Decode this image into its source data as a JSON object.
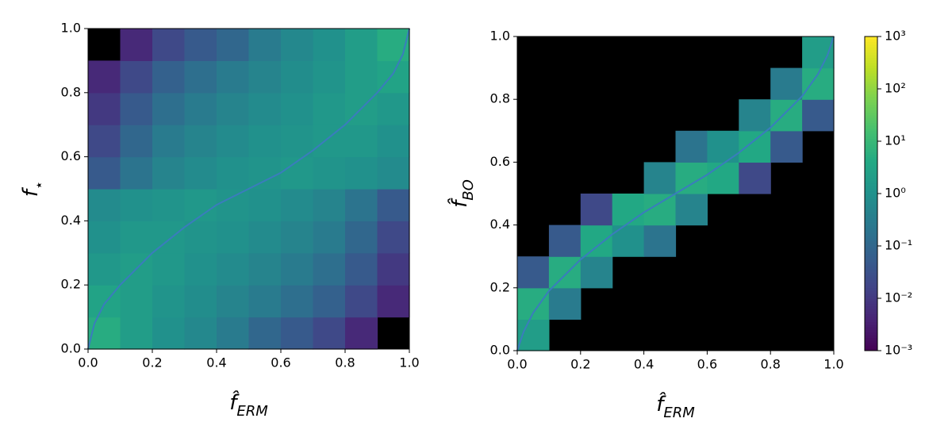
{
  "chart_data": [
    {
      "type": "heatmap",
      "xlabel": {
        "text": "f̂",
        "sub": "ERM"
      },
      "ylabel": {
        "text": "f",
        "sub": "⋆"
      },
      "xlim": [
        0,
        1
      ],
      "ylim": [
        0,
        1
      ],
      "xticks": [
        {
          "value": 0,
          "label": "0.0"
        },
        0.2,
        0.4,
        0.6,
        0.8,
        {
          "value": 1,
          "label": "1.0"
        }
      ],
      "yticks": [
        {
          "value": 0,
          "label": "0.0"
        },
        0.2,
        0.4,
        0.6,
        0.8,
        {
          "value": 1,
          "label": "1.0"
        }
      ],
      "colormap": "viridis",
      "scale": "log",
      "facecolor": "#000000",
      "z": [
        [
          5,
          2,
          1,
          0.6,
          0.3,
          0.1,
          0.05,
          0.02,
          0.005,
          null
        ],
        [
          3,
          2,
          1.2,
          0.8,
          0.5,
          0.3,
          0.15,
          0.07,
          0.02,
          0.005
        ],
        [
          1.5,
          2,
          1.5,
          1,
          0.7,
          0.5,
          0.3,
          0.15,
          0.05,
          0.01
        ],
        [
          1,
          1.5,
          1.5,
          1.2,
          1,
          0.7,
          0.5,
          0.3,
          0.1,
          0.02
        ],
        [
          0.7,
          1,
          1.2,
          1.5,
          1.2,
          1,
          0.7,
          0.5,
          0.2,
          0.05
        ],
        [
          0.05,
          0.2,
          0.5,
          0.7,
          1,
          1.2,
          1.5,
          1.2,
          1,
          0.7
        ],
        [
          0.02,
          0.1,
          0.3,
          0.5,
          0.7,
          1,
          1.2,
          1.5,
          1.5,
          1
        ],
        [
          0.01,
          0.05,
          0.15,
          0.3,
          0.5,
          0.7,
          1,
          1.5,
          2,
          1.5
        ],
        [
          0.005,
          0.02,
          0.07,
          0.15,
          0.3,
          0.5,
          0.8,
          1.2,
          2,
          3
        ],
        [
          null,
          0.005,
          0.02,
          0.05,
          0.1,
          0.3,
          0.6,
          1,
          2,
          5
        ]
      ],
      "line": {
        "color": "#3a7cbd",
        "x": [
          0,
          0.02,
          0.05,
          0.1,
          0.2,
          0.3,
          0.4,
          0.5,
          0.6,
          0.7,
          0.8,
          0.9,
          0.95,
          0.98,
          1
        ],
        "y": [
          0,
          0.08,
          0.14,
          0.2,
          0.3,
          0.38,
          0.45,
          0.5,
          0.55,
          0.62,
          0.7,
          0.8,
          0.86,
          0.92,
          1
        ]
      }
    },
    {
      "type": "heatmap",
      "xlabel": {
        "text": "f̂",
        "sub": "ERM"
      },
      "ylabel": {
        "text": "f̂",
        "sub": "BO"
      },
      "xlim": [
        0,
        1
      ],
      "ylim": [
        0,
        1
      ],
      "xticks": [
        {
          "value": 0,
          "label": "0.0"
        },
        0.2,
        0.4,
        0.6,
        0.8,
        {
          "value": 1,
          "label": "1.0"
        }
      ],
      "yticks": [
        {
          "value": 0,
          "label": "0.0"
        },
        0.2,
        0.4,
        0.6,
        0.8,
        {
          "value": 1,
          "label": "1.0"
        }
      ],
      "colormap": "viridis",
      "scale": "log",
      "facecolor": "#000000",
      "z": [
        [
          2,
          null,
          null,
          null,
          null,
          null,
          null,
          null,
          null,
          null
        ],
        [
          5,
          0.3,
          null,
          null,
          null,
          null,
          null,
          null,
          null,
          null
        ],
        [
          0.05,
          5,
          0.5,
          null,
          null,
          null,
          null,
          null,
          null,
          null
        ],
        [
          null,
          0.05,
          4,
          1,
          0.2,
          null,
          null,
          null,
          null,
          null
        ],
        [
          null,
          null,
          0.02,
          4,
          5,
          0.5,
          null,
          null,
          null,
          null
        ],
        [
          null,
          null,
          null,
          null,
          0.5,
          5,
          4,
          0.02,
          null,
          null
        ],
        [
          null,
          null,
          null,
          null,
          null,
          0.2,
          1,
          4,
          0.05,
          null
        ],
        [
          null,
          null,
          null,
          null,
          null,
          null,
          null,
          0.5,
          5,
          0.05
        ],
        [
          null,
          null,
          null,
          null,
          null,
          null,
          null,
          null,
          0.3,
          5
        ],
        [
          null,
          null,
          null,
          null,
          null,
          null,
          null,
          null,
          null,
          2
        ]
      ],
      "line": {
        "color": "#3a7cbd",
        "x": [
          0,
          0.02,
          0.05,
          0.1,
          0.2,
          0.3,
          0.4,
          0.5,
          0.6,
          0.7,
          0.8,
          0.9,
          0.95,
          0.98,
          1
        ],
        "y": [
          0,
          0.06,
          0.12,
          0.19,
          0.29,
          0.37,
          0.44,
          0.5,
          0.56,
          0.63,
          0.71,
          0.81,
          0.88,
          0.94,
          1
        ]
      },
      "colorbar": {
        "lim": [
          0.001,
          1000
        ],
        "scale": "log",
        "ticks": [
          {
            "value": 0.001,
            "label": "10⁻³"
          },
          {
            "value": 0.01,
            "label": "10⁻²"
          },
          {
            "value": 0.1,
            "label": "10⁻¹"
          },
          {
            "value": 1,
            "label": "10⁰"
          },
          {
            "value": 10,
            "label": "10¹"
          },
          {
            "value": 100,
            "label": "10²"
          },
          {
            "value": 1000,
            "label": "10³"
          }
        ]
      }
    }
  ]
}
